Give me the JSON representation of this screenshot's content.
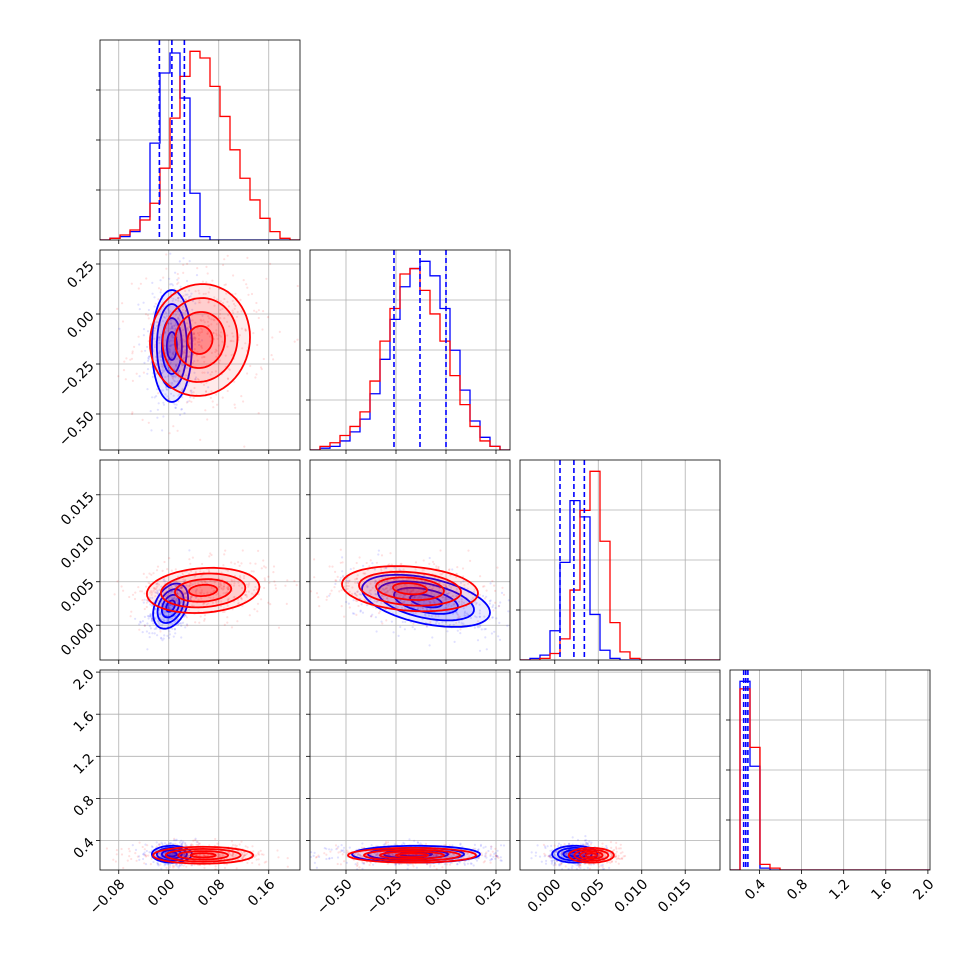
{
  "chart_data": {
    "type": "corner",
    "grid": true,
    "colors": {
      "series_a": "#0000ff",
      "series_b": "#ff0000",
      "grid": "#b0b0b0"
    },
    "series": [
      {
        "color": "#0000ff",
        "quantiles": [
          [
            -0.015,
            0.005,
            0.025
          ],
          [
            -0.26,
            -0.13,
            0.0
          ],
          [
            0.0006,
            0.0022,
            0.0034
          ],
          [
            0.25,
            0.27,
            0.29
          ]
        ]
      },
      {
        "color": "#ff0000"
      }
    ],
    "params": [
      {
        "range": [
          -0.11,
          0.21
        ],
        "ticks": [
          -0.08,
          0.0,
          0.08,
          0.16
        ],
        "tick_labels": [
          "−0.08",
          "0.00",
          "0.08",
          "0.16"
        ]
      },
      {
        "range": [
          -0.68,
          0.32
        ],
        "ticks": [
          -0.5,
          -0.25,
          0.0,
          0.25
        ],
        "tick_labels": [
          "−0.50",
          "−0.25",
          "0.00",
          "0.25"
        ]
      },
      {
        "range": [
          -0.004,
          0.019
        ],
        "ticks": [
          0.0,
          0.005,
          0.01,
          0.015
        ],
        "tick_labels": [
          "0.000",
          "0.005",
          "0.010",
          "0.015"
        ]
      },
      {
        "range": [
          0.12,
          2.02
        ],
        "ticks": [
          0.4,
          0.8,
          1.2,
          1.6,
          2.0
        ],
        "tick_labels": [
          "0.4",
          "0.8",
          "1.2",
          "1.6",
          "2.0"
        ]
      }
    ],
    "histograms": [
      {
        "bin_edges": [
          -0.11,
          -0.094,
          -0.078,
          -0.062,
          -0.046,
          -0.03,
          -0.014,
          0.002,
          0.018,
          0.034,
          0.05,
          0.066,
          0.082,
          0.098,
          0.114,
          0.13,
          0.146,
          0.162,
          0.178,
          0.194,
          0.21
        ],
        "blue": [
          0,
          1,
          2,
          5,
          14,
          58,
          100,
          112,
          85,
          28,
          2,
          0,
          0,
          0,
          0,
          0,
          0,
          0,
          0,
          0
        ],
        "red": [
          0,
          1,
          3,
          6,
          12,
          22,
          43,
          73,
          98,
          113,
          109,
          92,
          74,
          54,
          37,
          24,
          13,
          5,
          1,
          0
        ]
      },
      {
        "bin_edges": [
          -0.68,
          -0.63,
          -0.58,
          -0.53,
          -0.48,
          -0.43,
          -0.38,
          -0.33,
          -0.28,
          -0.23,
          -0.18,
          -0.13,
          -0.08,
          -0.03,
          0.02,
          0.07,
          0.12,
          0.17,
          0.22,
          0.27,
          0.32
        ],
        "blue": [
          0,
          1,
          2,
          5,
          10,
          17,
          31,
          50,
          72,
          90,
          100,
          104,
          96,
          78,
          55,
          33,
          16,
          7,
          2,
          0
        ],
        "red": [
          0,
          2,
          4,
          8,
          13,
          21,
          38,
          60,
          78,
          97,
          100,
          88,
          75,
          60,
          41,
          25,
          13,
          5,
          2,
          0
        ]
      },
      {
        "bin_edges": [
          -0.004,
          -0.00285,
          -0.0017,
          -0.00055,
          0.0006,
          0.00175,
          0.0029,
          0.00405,
          0.0052,
          0.00635,
          0.0075,
          0.00865,
          0.0098,
          0.01095,
          0.0121,
          0.01325,
          0.0144,
          0.01555,
          0.0167,
          0.01785,
          0.019
        ],
        "blue": [
          0,
          1,
          3,
          18,
          60,
          98,
          88,
          28,
          6,
          1,
          0,
          0,
          0,
          0,
          0,
          0,
          0,
          0,
          0,
          0
        ],
        "red": [
          0,
          0,
          1,
          4,
          13,
          43,
          92,
          116,
          73,
          23,
          5,
          1,
          0,
          0,
          0,
          0,
          0,
          0,
          0,
          0
        ]
      },
      {
        "bin_edges": [
          0.12,
          0.215,
          0.31,
          0.405,
          0.5,
          0.595,
          0.69,
          0.785,
          0.88,
          0.975,
          1.07,
          1.165,
          1.26,
          1.355,
          1.45,
          1.545,
          1.64,
          1.735,
          1.83,
          1.925,
          2.02
        ],
        "blue": [
          0,
          100,
          55,
          1,
          0,
          0,
          0,
          0,
          0,
          0,
          0,
          0,
          0,
          0,
          0,
          0,
          0,
          0,
          0,
          0
        ],
        "red": [
          0,
          96,
          65,
          3,
          1,
          0,
          0,
          0,
          0,
          0,
          0,
          0,
          0,
          0,
          0,
          0,
          0,
          0,
          0,
          0
        ]
      }
    ],
    "contours_2d": {
      "1_0": {
        "blue": {
          "center": [
            0.005,
            -0.16
          ],
          "sigma": [
            0.016,
            0.14
          ],
          "rho": 0.0
        },
        "red": {
          "center": [
            0.05,
            -0.13
          ],
          "sigma": [
            0.04,
            0.14
          ],
          "rho": 0.05
        }
      },
      "2_0": {
        "blue": {
          "center": [
            0.003,
            0.0022
          ],
          "sigma": [
            0.014,
            0.0013
          ],
          "rho": 0.35
        },
        "red": {
          "center": [
            0.055,
            0.004
          ],
          "sigma": [
            0.045,
            0.0013
          ],
          "rho": 0.15
        }
      },
      "2_1": {
        "blue": {
          "center": [
            -0.1,
            0.0028
          ],
          "sigma": [
            0.16,
            0.0015
          ],
          "rho": -0.45
        },
        "red": {
          "center": [
            -0.18,
            0.0042
          ],
          "sigma": [
            0.17,
            0.0013
          ],
          "rho": -0.2
        }
      },
      "3_0": {
        "blue": {
          "center": [
            0.005,
            0.27
          ],
          "sigma": [
            0.016,
            0.04
          ],
          "rho": 0.0
        },
        "red": {
          "center": [
            0.055,
            0.26
          ],
          "sigma": [
            0.04,
            0.04
          ],
          "rho": 0.0
        }
      },
      "3_1": {
        "blue": {
          "center": [
            -0.15,
            0.27
          ],
          "sigma": [
            0.16,
            0.04
          ],
          "rho": 0.0
        },
        "red": {
          "center": [
            -0.17,
            0.26
          ],
          "sigma": [
            0.16,
            0.035
          ],
          "rho": 0.0
        }
      },
      "3_2": {
        "blue": {
          "center": [
            0.0023,
            0.27
          ],
          "sigma": [
            0.0013,
            0.04
          ],
          "rho": 0.0
        },
        "red": {
          "center": [
            0.0042,
            0.26
          ],
          "sigma": [
            0.0013,
            0.035
          ],
          "rho": 0.0
        }
      }
    },
    "contour_levels_sigma": [
      0.5,
      1.0,
      1.5,
      2.0
    ]
  }
}
